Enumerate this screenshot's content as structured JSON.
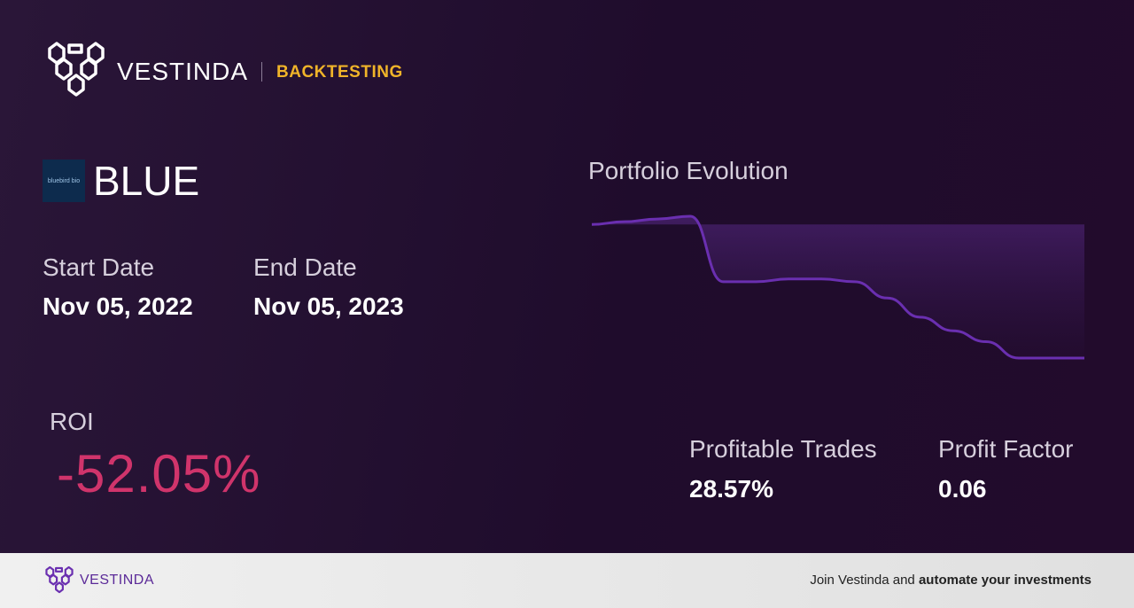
{
  "brand": {
    "name": "VESTINDA",
    "section": "BACKTESTING",
    "accent": "#f0b429"
  },
  "asset": {
    "symbol": "BLUE",
    "logo_text": "bluebird bio"
  },
  "dates": {
    "start_label": "Start Date",
    "start_value": "Nov 05, 2022",
    "end_label": "End Date",
    "end_value": "Nov 05, 2023"
  },
  "roi": {
    "label": "ROI",
    "value": "-52.05%",
    "color": "#d0346b"
  },
  "chart": {
    "title": "Portfolio Evolution",
    "line_color": "#6a2fb0",
    "values": [
      100,
      101,
      102,
      103,
      79,
      79,
      80,
      80,
      79,
      73,
      66,
      61,
      57,
      51,
      51,
      51
    ]
  },
  "stats": {
    "trades_label": "Profitable Trades",
    "trades_value": "28.57%",
    "pf_label": "Profit Factor",
    "pf_value": "0.06"
  },
  "footer": {
    "name": "VESTINDA",
    "cta_prefix": "Join Vestinda and ",
    "cta_bold": "automate your investments"
  }
}
